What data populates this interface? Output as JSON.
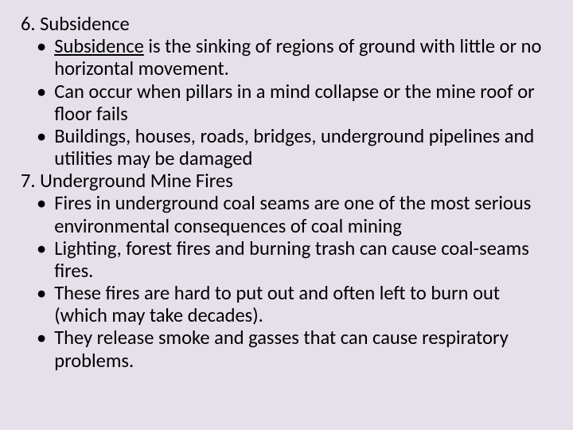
{
  "background_color": "#e5e0ea",
  "text_color": "#000000",
  "font_size": 24.5,
  "items": {
    "section6_title": "6.  Subsidence",
    "section6_term": "Subsidence",
    "section6_bullet1_rest": " is the sinking of regions of ground with little or no horizontal movement.",
    "section6_bullet2": "Can occur when pillars in a mind collapse or the mine roof or floor fails",
    "section6_bullet3": "Buildings, houses, roads, bridges, underground pipelines and utilities may be damaged",
    "section7_title": "7.  Underground Mine Fires",
    "section7_bullet1": "Fires in underground coal seams are one of the most serious environmental consequences of coal mining",
    "section7_bullet2": "Lighting, forest fires and burning trash can cause coal-seams fires.",
    "section7_bullet3": "These fires are hard to put out and often left to burn out (which may take decades).",
    "section7_bullet4": "They release smoke and gasses that can cause respiratory problems."
  }
}
